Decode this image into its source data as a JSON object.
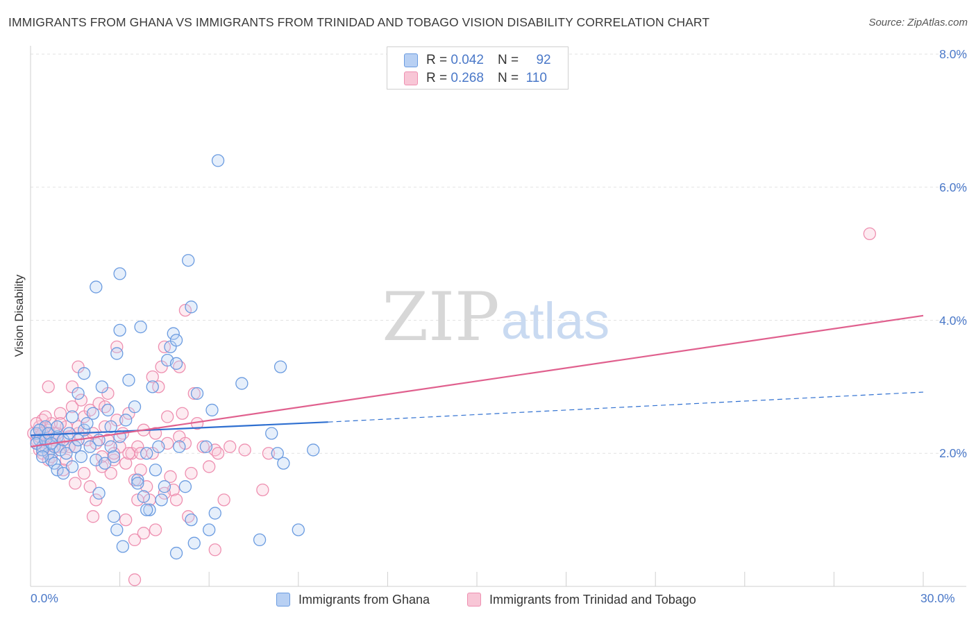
{
  "title": "IMMIGRANTS FROM GHANA VS IMMIGRANTS FROM TRINIDAD AND TOBAGO VISION DISABILITY CORRELATION CHART",
  "source": "Source: ZipAtlas.com",
  "watermark": {
    "zip": "ZIP",
    "atlas": "atlas"
  },
  "colors": {
    "ghana": "#6a9be0",
    "ghana_fill": "#b8d0f3",
    "ghana_line": "#2e6fd0",
    "trinidad": "#ee8fb0",
    "trinidad_fill": "#f8c6d6",
    "trinidad_line": "#e0608e",
    "axis_label": "#4a78c8"
  },
  "legend": {
    "rows": [
      {
        "r_label": "R =",
        "r_value": "0.042",
        "n_label": "N =",
        "n_value": "92"
      },
      {
        "r_label": "R =",
        "r_value": "0.268",
        "n_label": "N =",
        "n_value": "110"
      }
    ]
  },
  "chart_data": {
    "type": "scatter",
    "xlabel": "",
    "ylabel": "Vision Disability",
    "xlim": [
      0,
      30
    ],
    "ylim": [
      0,
      8
    ],
    "x_tick_labels": [
      "0.0%",
      "30.0%"
    ],
    "y_ticks": [
      2,
      4,
      6,
      8
    ],
    "y_tick_labels": [
      "2.0%",
      "4.0%",
      "6.0%",
      "8.0%"
    ],
    "grid": "horizontal dashed",
    "legend_placement": "top-center",
    "series": [
      {
        "name": "Immigrants from Ghana",
        "R": 0.042,
        "N": 92,
        "trend": {
          "x": [
            0,
            10,
            30
          ],
          "y": [
            2.27,
            2.47,
            2.92
          ],
          "solid_until": 10
        },
        "points": [
          [
            0.2,
            2.3
          ],
          [
            0.3,
            2.2
          ],
          [
            0.4,
            2.1
          ],
          [
            0.5,
            2.4
          ],
          [
            0.2,
            2.15
          ],
          [
            0.6,
            2.0
          ],
          [
            0.7,
            1.9
          ],
          [
            0.8,
            2.1
          ],
          [
            0.9,
            2.25
          ],
          [
            1.0,
            2.05
          ],
          [
            0.3,
            2.35
          ],
          [
            0.5,
            2.2
          ],
          [
            0.6,
            2.3
          ],
          [
            0.4,
            2.05
          ],
          [
            0.7,
            2.15
          ],
          [
            1.1,
            2.2
          ],
          [
            1.2,
            2.0
          ],
          [
            0.8,
            1.85
          ],
          [
            0.9,
            2.4
          ],
          [
            1.3,
            2.3
          ],
          [
            1.5,
            2.1
          ],
          [
            1.6,
            2.2
          ],
          [
            1.7,
            1.95
          ],
          [
            1.4,
            1.8
          ],
          [
            1.8,
            2.35
          ],
          [
            2.0,
            2.1
          ],
          [
            1.9,
            2.45
          ],
          [
            2.2,
            1.9
          ],
          [
            2.3,
            2.2
          ],
          [
            2.5,
            1.85
          ],
          [
            2.1,
            2.6
          ],
          [
            1.6,
            2.9
          ],
          [
            2.4,
            3.0
          ],
          [
            2.7,
            2.1
          ],
          [
            2.8,
            1.95
          ],
          [
            3.0,
            2.25
          ],
          [
            3.2,
            2.5
          ],
          [
            2.6,
            2.65
          ],
          [
            1.8,
            3.2
          ],
          [
            2.9,
            3.5
          ],
          [
            3.3,
            3.1
          ],
          [
            3.5,
            2.7
          ],
          [
            3.6,
            1.6
          ],
          [
            3.8,
            1.35
          ],
          [
            3.9,
            2.0
          ],
          [
            4.1,
            3.0
          ],
          [
            4.3,
            2.1
          ],
          [
            4.5,
            1.5
          ],
          [
            4.0,
            1.15
          ],
          [
            4.4,
            1.3
          ],
          [
            4.6,
            3.4
          ],
          [
            4.7,
            3.6
          ],
          [
            4.8,
            3.8
          ],
          [
            4.9,
            3.7
          ],
          [
            5.0,
            2.1
          ],
          [
            5.2,
            1.5
          ],
          [
            5.4,
            1.0
          ],
          [
            5.6,
            2.9
          ],
          [
            5.9,
            2.1
          ],
          [
            6.1,
            2.65
          ],
          [
            6.2,
            1.1
          ],
          [
            6.0,
            0.85
          ],
          [
            5.5,
            0.65
          ],
          [
            4.9,
            0.5
          ],
          [
            3.1,
            0.6
          ],
          [
            2.9,
            0.85
          ],
          [
            2.8,
            1.05
          ],
          [
            2.3,
            1.4
          ],
          [
            3.9,
            1.15
          ],
          [
            3.6,
            1.55
          ],
          [
            4.2,
            1.75
          ],
          [
            7.1,
            3.05
          ],
          [
            8.1,
            2.3
          ],
          [
            8.5,
            1.85
          ],
          [
            8.3,
            2.0
          ],
          [
            7.7,
            0.7
          ],
          [
            9.0,
            0.85
          ],
          [
            9.5,
            2.05
          ],
          [
            8.4,
            3.3
          ],
          [
            2.2,
            4.5
          ],
          [
            3.0,
            4.7
          ],
          [
            5.3,
            4.9
          ],
          [
            5.4,
            4.2
          ],
          [
            3.7,
            3.9
          ],
          [
            3.0,
            3.85
          ],
          [
            4.9,
            3.35
          ],
          [
            6.3,
            6.4
          ],
          [
            0.9,
            1.75
          ],
          [
            1.1,
            1.7
          ],
          [
            0.4,
            1.95
          ],
          [
            1.4,
            2.55
          ],
          [
            2.7,
            2.4
          ]
        ]
      },
      {
        "name": "Immigrants from Trinidad and Tobago",
        "R": 0.268,
        "N": 110,
        "trend": {
          "x": [
            0,
            30
          ],
          "y": [
            2.1,
            4.07
          ]
        },
        "points": [
          [
            0.1,
            2.3
          ],
          [
            0.2,
            2.2
          ],
          [
            0.3,
            2.4
          ],
          [
            0.2,
            2.15
          ],
          [
            0.4,
            2.5
          ],
          [
            0.5,
            2.25
          ],
          [
            0.6,
            2.35
          ],
          [
            0.3,
            2.05
          ],
          [
            0.7,
            2.45
          ],
          [
            0.8,
            2.2
          ],
          [
            0.9,
            2.3
          ],
          [
            1.0,
            2.6
          ],
          [
            1.1,
            2.1
          ],
          [
            0.4,
            2.0
          ],
          [
            0.5,
            2.55
          ],
          [
            0.6,
            1.9
          ],
          [
            1.2,
            2.4
          ],
          [
            1.3,
            2.25
          ],
          [
            1.4,
            2.7
          ],
          [
            1.5,
            2.1
          ],
          [
            1.6,
            2.3
          ],
          [
            1.7,
            2.8
          ],
          [
            1.8,
            2.55
          ],
          [
            1.9,
            2.2
          ],
          [
            2.0,
            2.65
          ],
          [
            2.1,
            2.3
          ],
          [
            2.2,
            2.15
          ],
          [
            2.3,
            2.75
          ],
          [
            2.4,
            1.95
          ],
          [
            2.5,
            2.4
          ],
          [
            2.6,
            2.2
          ],
          [
            2.7,
            1.7
          ],
          [
            2.8,
            1.9
          ],
          [
            2.9,
            2.5
          ],
          [
            3.0,
            2.1
          ],
          [
            3.1,
            2.3
          ],
          [
            3.2,
            1.85
          ],
          [
            3.3,
            2.6
          ],
          [
            3.4,
            2.0
          ],
          [
            3.5,
            1.6
          ],
          [
            3.6,
            2.1
          ],
          [
            3.7,
            1.75
          ],
          [
            3.8,
            2.35
          ],
          [
            3.9,
            1.5
          ],
          [
            4.0,
            1.3
          ],
          [
            4.1,
            2.0
          ],
          [
            4.2,
            2.3
          ],
          [
            4.3,
            3.0
          ],
          [
            4.4,
            3.3
          ],
          [
            4.5,
            3.6
          ],
          [
            4.6,
            2.15
          ],
          [
            4.7,
            1.65
          ],
          [
            4.8,
            1.45
          ],
          [
            4.9,
            1.3
          ],
          [
            5.0,
            2.25
          ],
          [
            5.1,
            2.6
          ],
          [
            5.2,
            2.15
          ],
          [
            5.4,
            1.7
          ],
          [
            5.5,
            2.9
          ],
          [
            5.6,
            2.45
          ],
          [
            5.8,
            2.1
          ],
          [
            6.0,
            1.8
          ],
          [
            6.2,
            2.05
          ],
          [
            6.5,
            1.3
          ],
          [
            6.7,
            2.1
          ],
          [
            7.2,
            2.05
          ],
          [
            7.8,
            1.45
          ],
          [
            8.0,
            2.0
          ],
          [
            0.3,
            2.25
          ],
          [
            0.5,
            2.1
          ],
          [
            0.8,
            2.3
          ],
          [
            1.0,
            2.45
          ],
          [
            1.2,
            1.9
          ],
          [
            1.5,
            1.55
          ],
          [
            1.6,
            2.4
          ],
          [
            1.8,
            1.7
          ],
          [
            2.0,
            1.5
          ],
          [
            2.1,
            1.05
          ],
          [
            2.2,
            1.3
          ],
          [
            2.4,
            1.8
          ],
          [
            2.6,
            2.9
          ],
          [
            2.9,
            3.6
          ],
          [
            3.2,
            1.0
          ],
          [
            3.5,
            0.7
          ],
          [
            3.7,
            2.0
          ],
          [
            3.8,
            0.8
          ],
          [
            4.2,
            0.85
          ],
          [
            4.5,
            1.4
          ],
          [
            5.2,
            4.15
          ],
          [
            5.0,
            3.3
          ],
          [
            4.1,
            3.15
          ],
          [
            6.3,
            2.0
          ],
          [
            3.5,
            0.1
          ],
          [
            1.4,
            3.0
          ],
          [
            0.6,
            3.0
          ],
          [
            1.6,
            3.3
          ],
          [
            2.5,
            2.7
          ],
          [
            3.3,
            2.0
          ],
          [
            1.1,
            1.75
          ],
          [
            0.9,
            2.1
          ],
          [
            0.7,
            1.95
          ],
          [
            1.3,
            2.1
          ],
          [
            2.8,
            2.0
          ],
          [
            3.6,
            1.3
          ],
          [
            4.6,
            2.55
          ],
          [
            5.3,
            1.05
          ],
          [
            6.2,
            0.55
          ],
          [
            28.2,
            5.3
          ],
          [
            0.4,
            2.3
          ],
          [
            0.2,
            2.45
          ]
        ]
      }
    ]
  },
  "bottom_legend": [
    {
      "label": "Immigrants from Ghana"
    },
    {
      "label": "Immigrants from Trinidad and Tobago"
    }
  ]
}
